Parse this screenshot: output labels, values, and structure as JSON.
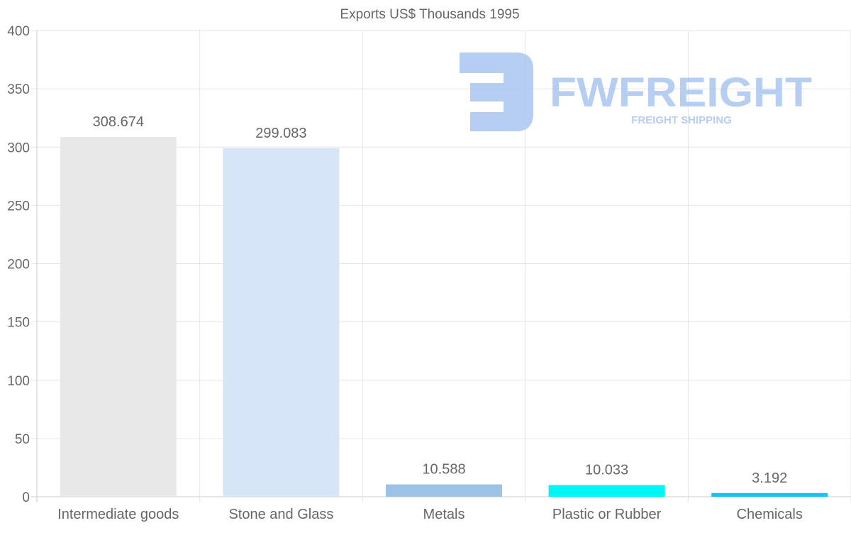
{
  "chart_data": {
    "type": "bar",
    "title": "Exports US$ Thousands 1995",
    "categories": [
      "Intermediate goods",
      "Stone and Glass",
      "Metals",
      "Plastic or Rubber",
      "Chemicals"
    ],
    "values": [
      308.674,
      299.083,
      10.588,
      10.033,
      3.192
    ],
    "data_labels": [
      "308.674",
      "299.083",
      "10.588",
      "10.033",
      "3.192"
    ],
    "colors": [
      "#e8e8e8",
      "#d6e6f8",
      "#9cc3e6",
      "#00f5f5",
      "#14c3f5"
    ],
    "xlabel": "",
    "ylabel": "",
    "ylim": [
      0,
      400
    ],
    "yticks": [
      0,
      50,
      100,
      150,
      200,
      250,
      300,
      350,
      400
    ],
    "grid": true,
    "legend": "none"
  },
  "watermark": {
    "brand": "FWFREIGHT",
    "tagline": "FREIGHT SHIPPING",
    "color": "#a9c6f0"
  }
}
